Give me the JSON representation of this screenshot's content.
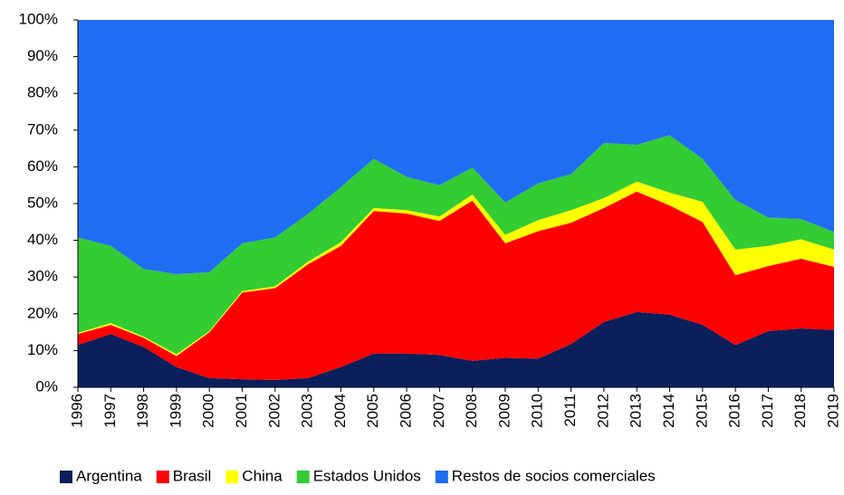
{
  "chart_data": {
    "type": "stacked_area",
    "categories": [
      "1996",
      "1997",
      "1998",
      "1999",
      "2000",
      "2001",
      "2002",
      "2003",
      "2004",
      "2005",
      "2006",
      "2007",
      "2008",
      "2009",
      "2010",
      "2011",
      "2012",
      "2013",
      "2014",
      "2015",
      "2016",
      "2017",
      "2018",
      "2019"
    ],
    "series": [
      {
        "name": "Argentina",
        "color": "#0a1f5c",
        "values": [
          11.5,
          14.5,
          11,
          5.5,
          2.5,
          2.2,
          2,
          2.5,
          5.5,
          9.2,
          9.2,
          8.8,
          7.2,
          8,
          7.8,
          11.8,
          17.8,
          20.5,
          19.8,
          17,
          11.5,
          15.3,
          16,
          15.6
        ]
      },
      {
        "name": "Brasil",
        "color": "#ff0000",
        "values": [
          3,
          2.5,
          2.5,
          3,
          12.5,
          23.6,
          25,
          31,
          33,
          38.8,
          38.1,
          36.5,
          43.6,
          31.2,
          34.7,
          33,
          31,
          32.8,
          29.7,
          28,
          19,
          17.7,
          19,
          17.2
        ]
      },
      {
        "name": "China",
        "color": "#ffff00",
        "values": [
          0.3,
          0.5,
          0.3,
          0.5,
          0.3,
          0.4,
          0.5,
          0.7,
          1,
          0.8,
          0.9,
          1.2,
          1.7,
          2.3,
          3,
          3.4,
          2.7,
          2.7,
          3.5,
          5.5,
          7,
          5.5,
          5.3,
          4.7
        ]
      },
      {
        "name": "Estados Unidos",
        "color": "#33cc33",
        "values": [
          26,
          21,
          18.4,
          21.8,
          16,
          13,
          13.3,
          13,
          15,
          13.4,
          9.1,
          8.5,
          7.3,
          8.8,
          10,
          9.8,
          15,
          10,
          15.6,
          11.7,
          13.5,
          7.7,
          5.5,
          4.8
        ]
      },
      {
        "name": "Restos de socios comerciales",
        "color": "#1f6df2",
        "values": [
          59.2,
          61.5,
          67.8,
          69.2,
          68.7,
          60.8,
          59.2,
          52.8,
          45.5,
          37.8,
          42.7,
          45,
          40.2,
          49.7,
          44.5,
          42,
          33.5,
          34,
          31.4,
          37.8,
          49,
          53.8,
          54.2,
          57.7
        ]
      }
    ],
    "ylim": [
      0,
      100
    ],
    "yticks": [
      {
        "value": 0,
        "label": "0%"
      },
      {
        "value": 10,
        "label": "10%"
      },
      {
        "value": 20,
        "label": "20%"
      },
      {
        "value": 30,
        "label": "30%"
      },
      {
        "value": 40,
        "label": "40%"
      },
      {
        "value": 50,
        "label": "50%"
      },
      {
        "value": 60,
        "label": "60%"
      },
      {
        "value": 70,
        "label": "70%"
      },
      {
        "value": 80,
        "label": "80%"
      },
      {
        "value": 90,
        "label": "90%"
      },
      {
        "value": 100,
        "label": "100%"
      }
    ],
    "legend": "bottom"
  }
}
